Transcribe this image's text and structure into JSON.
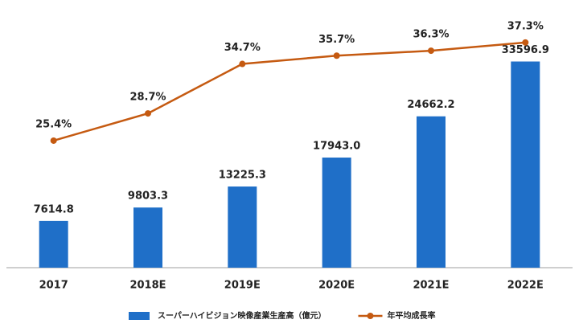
{
  "chart_data": {
    "type": "bar-line",
    "categories": [
      "2017",
      "2018E",
      "2019E",
      "2020E",
      "2021E",
      "2022E"
    ],
    "series": [
      {
        "name": "スーパーハイビジョン映像産業生産高（億元）",
        "type": "bar",
        "color": "#1f6fc8",
        "values": [
          7614.8,
          9803.3,
          13225.3,
          17943.0,
          24662.2,
          33596.9
        ],
        "value_labels": [
          "7614.8",
          "9803.3",
          "13225.3",
          "17943.0",
          "24662.2",
          "33596.9"
        ]
      },
      {
        "name": "年平均成長率",
        "type": "line",
        "axis": "y2",
        "color": "#c55a11",
        "values": [
          25.4,
          28.7,
          34.7,
          35.7,
          36.3,
          37.3
        ],
        "value_labels": [
          "25.4%",
          "28.7%",
          "34.7%",
          "35.7%",
          "36.3%",
          "37.3%"
        ]
      }
    ],
    "ylim": [
      0,
      41000
    ],
    "y2lim": [
      10,
      40.5
    ],
    "grid": false,
    "legend": "bottom"
  }
}
